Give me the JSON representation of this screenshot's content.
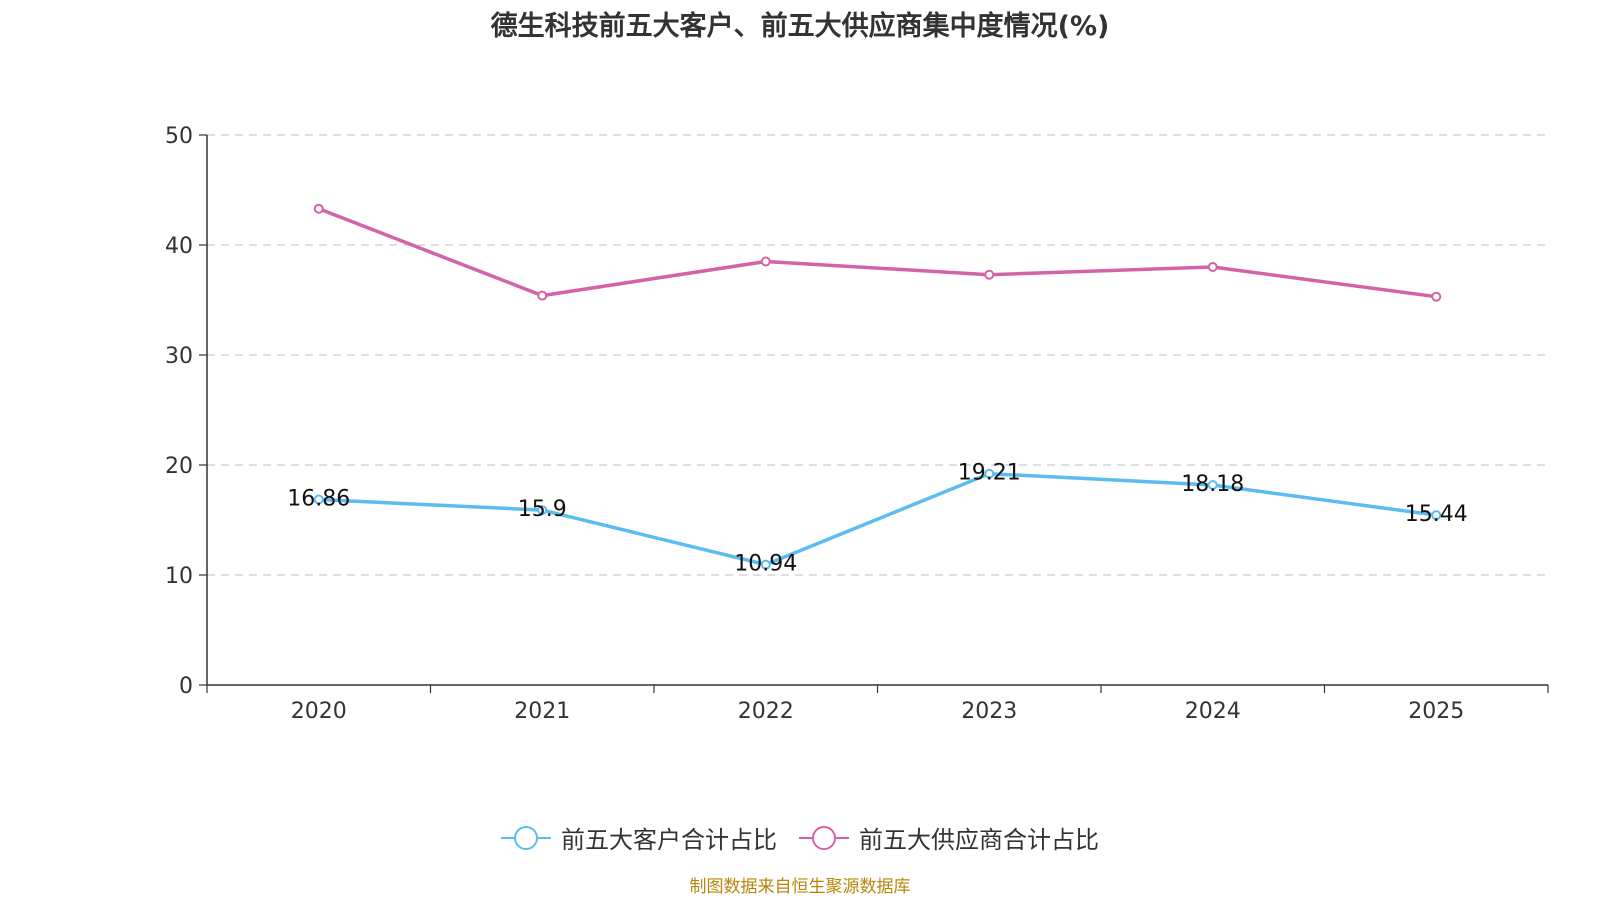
{
  "colors": {
    "customers": "#5bbcf0",
    "suppliers": "#d462a8",
    "axis": "#333333",
    "grid": "#cccccc",
    "source": "#b8860b"
  },
  "legend": {
    "customers_label": "前五大客户合计占比",
    "suppliers_label": "前五大供应商合计占比"
  },
  "source_text": "制图数据来自恒生聚源数据库",
  "chart_data": {
    "type": "line",
    "title": "德生科技前五大客户、前五大供应商集中度情况(%)",
    "categories": [
      "2020",
      "2021",
      "2022",
      "2023",
      "2024",
      "2025"
    ],
    "ylim": [
      0,
      50
    ],
    "yticks": [
      0,
      10,
      20,
      30,
      40,
      50
    ],
    "grid": true,
    "legend_position": "bottom-center",
    "series": [
      {
        "name": "前五大客户合计占比",
        "values": [
          16.86,
          15.9,
          10.94,
          19.21,
          18.18,
          15.44
        ],
        "labels": [
          "16.86",
          "15.9",
          "10.94",
          "19.21",
          "18.18",
          "15.44"
        ],
        "show_labels": true
      },
      {
        "name": "前五大供应商合计占比",
        "values": [
          43.3,
          35.4,
          38.5,
          37.3,
          38.0,
          35.3
        ],
        "show_labels": false
      }
    ]
  }
}
